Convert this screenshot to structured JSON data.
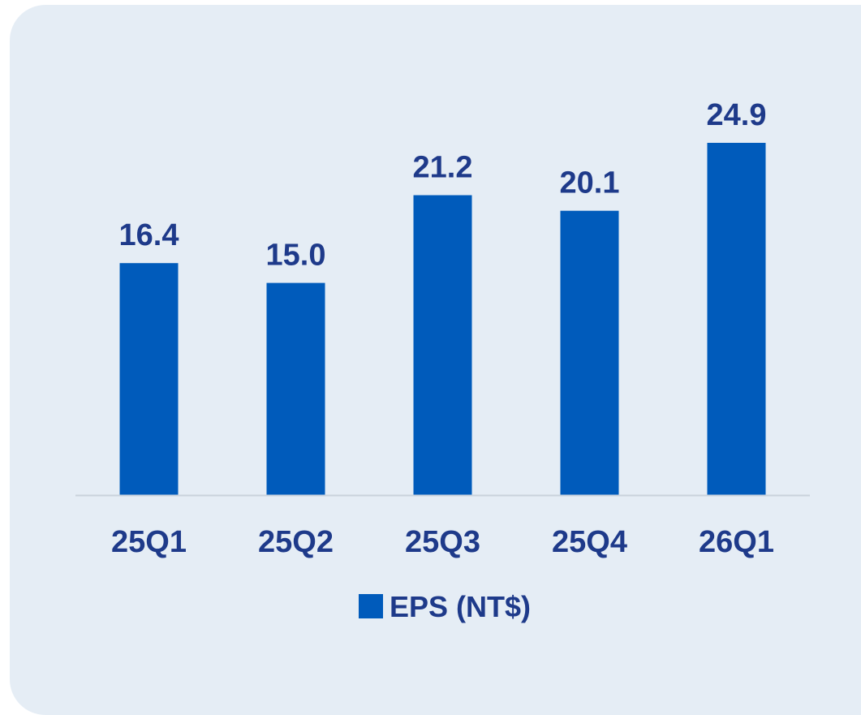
{
  "chart_data": {
    "type": "bar",
    "categories": [
      "25Q1",
      "25Q2",
      "25Q3",
      "25Q4",
      "26Q1"
    ],
    "series": [
      {
        "name": "EPS (NT$)",
        "values": [
          16.4,
          15.0,
          21.2,
          20.1,
          24.9
        ],
        "labels": [
          "16.4",
          "15.0",
          "21.2",
          "20.1",
          "24.9"
        ]
      }
    ],
    "ylim": [
      0,
      35
    ],
    "grid": false,
    "legend_position": "bottom",
    "colors": {
      "bar": "#005bbb",
      "text": "#1e3a8a",
      "axis": "#c9d2dc",
      "background": "#e5edf5"
    }
  }
}
